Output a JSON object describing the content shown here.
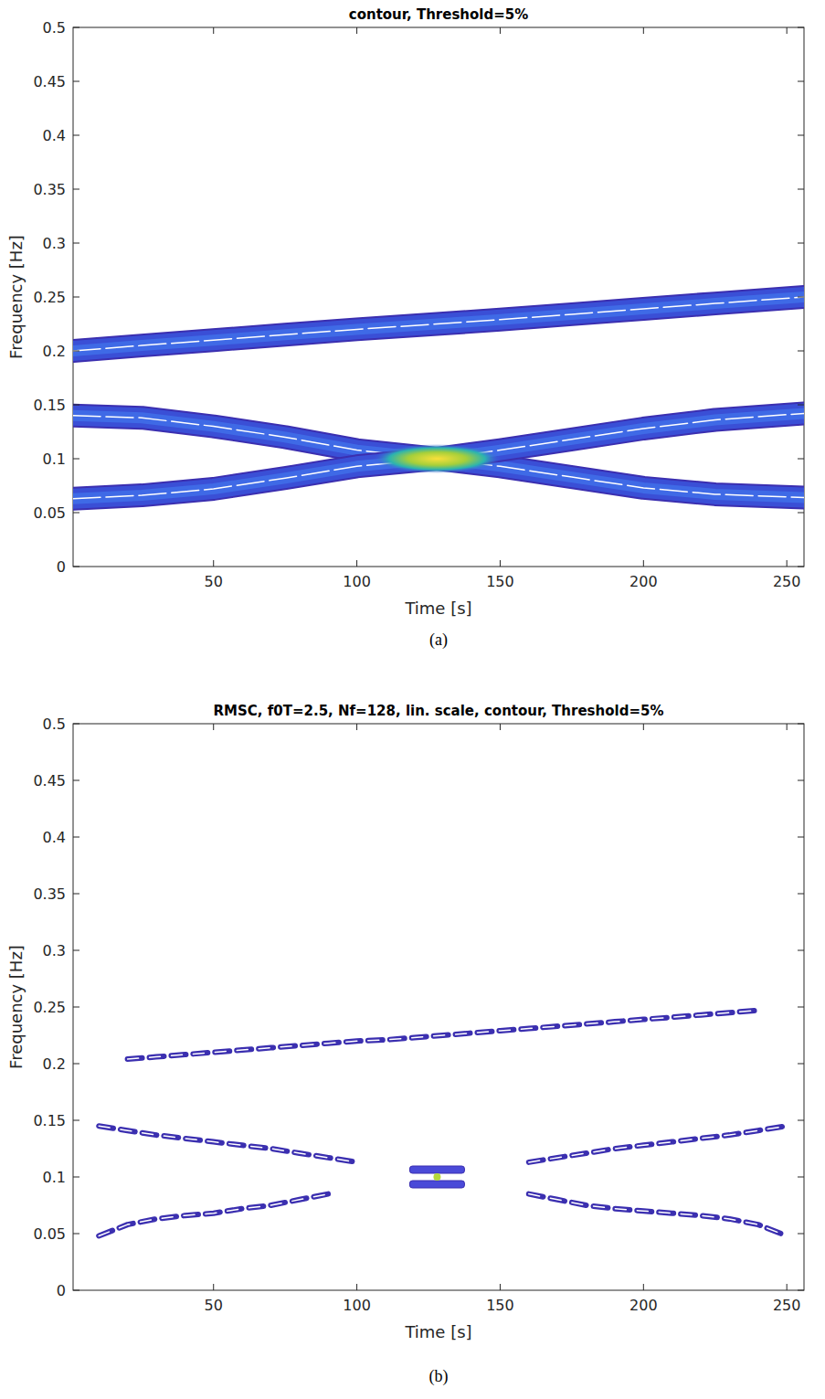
{
  "chart_data": [
    {
      "type": "line",
      "title": "contour, Threshold=5%",
      "caption": "(a)",
      "x_label": "Time [s]",
      "y_label": "Frequency [Hz]",
      "xlim": [
        1,
        256
      ],
      "ylim": [
        0,
        0.5
      ],
      "xticks": [
        50,
        100,
        150,
        200,
        250
      ],
      "yticks": [
        0,
        0.05,
        0.1,
        0.15,
        0.2,
        0.25,
        0.3,
        0.35,
        0.4,
        0.45,
        0.5
      ],
      "line_style": "band",
      "x": [
        1,
        25,
        50,
        75,
        100,
        128,
        150,
        175,
        200,
        225,
        256
      ],
      "series": [
        {
          "values": [
            0.2,
            0.205,
            0.21,
            0.215,
            0.22,
            0.225,
            0.229,
            0.234,
            0.239,
            0.244,
            0.25
          ]
        },
        {
          "values": [
            0.14,
            0.138,
            0.13,
            0.12,
            0.108,
            0.1,
            0.093,
            0.083,
            0.073,
            0.067,
            0.064
          ]
        },
        {
          "values": [
            0.063,
            0.066,
            0.072,
            0.082,
            0.093,
            0.1,
            0.108,
            0.118,
            0.128,
            0.136,
            0.142
          ]
        }
      ],
      "peaks": {
        "x": [
          128
        ],
        "y": [
          0.1
        ]
      }
    },
    {
      "type": "line",
      "title": "RMSC, f0T=2.5, Nf=128, lin. scale, contour, Threshold=5%",
      "caption": "(b)",
      "x_label": "Time [s]",
      "y_label": "Frequency [Hz]",
      "xlim": [
        1,
        256
      ],
      "ylim": [
        0,
        0.5
      ],
      "xticks": [
        50,
        100,
        150,
        200,
        250
      ],
      "yticks": [
        0,
        0.05,
        0.1,
        0.15,
        0.2,
        0.25,
        0.3,
        0.35,
        0.4,
        0.45,
        0.5
      ],
      "line_style": "dashed",
      "x": [
        10,
        20,
        30,
        40,
        50,
        60,
        70,
        80,
        90,
        100,
        110,
        120,
        130,
        140,
        150,
        160,
        170,
        180,
        190,
        200,
        210,
        220,
        230,
        240,
        250
      ],
      "series": [
        {
          "values": [
            null,
            0.204,
            0.206,
            0.208,
            0.21,
            0.212,
            0.214,
            0.216,
            0.218,
            0.22,
            0.221,
            0.223,
            0.225,
            0.227,
            0.229,
            0.231,
            0.233,
            0.235,
            0.237,
            0.239,
            0.241,
            0.243,
            0.245,
            0.247,
            null
          ]
        },
        {
          "values": [
            0.145,
            0.141,
            0.137,
            0.134,
            0.131,
            0.128,
            0.125,
            0.121,
            0.117,
            0.113,
            null,
            null,
            null,
            null,
            null,
            0.085,
            0.08,
            0.075,
            0.072,
            0.07,
            0.068,
            0.066,
            0.063,
            0.058,
            0.048
          ]
        },
        {
          "values": [
            0.048,
            0.058,
            0.063,
            0.066,
            0.068,
            0.072,
            0.075,
            0.08,
            0.085,
            null,
            null,
            null,
            null,
            null,
            null,
            0.113,
            0.117,
            0.121,
            0.125,
            0.128,
            0.131,
            0.134,
            0.137,
            0.141,
            0.145
          ]
        }
      ],
      "peaks": {
        "x": [
          128
        ],
        "y": [
          0.1
        ]
      }
    }
  ]
}
